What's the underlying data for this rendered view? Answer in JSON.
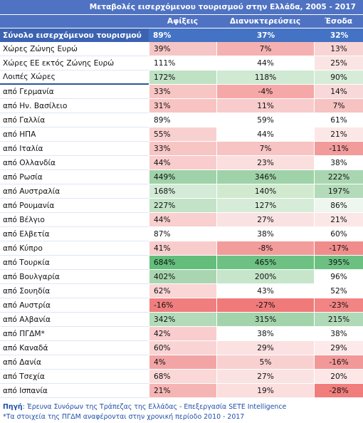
{
  "title": "Μεταβολές εισερχόμενου τουρισμού στην Ελλάδα, 2005 - 2017",
  "columns": [
    "Αφίξεις",
    "Διανυκτερεύσεις",
    "Έσοδα"
  ],
  "total": {
    "label": "Σύνολο εισερχόμενου τουρισμού",
    "values": [
      "89%",
      "37%",
      "32%"
    ]
  },
  "rows": [
    {
      "label": "Χώρες Ζώνης Ευρώ",
      "values": [
        "39%",
        "7%",
        "13%"
      ],
      "colors": [
        "#f6c6c6",
        "#f5b1b1",
        "#f8d4d4"
      ]
    },
    {
      "label": "Χώρες ΕΕ εκτός Ζώνης Ευρώ",
      "values": [
        "111%",
        "44%",
        "25%"
      ],
      "colors": [
        "#ffffff",
        "#ffffff",
        "#fbe4e4"
      ]
    },
    {
      "label": "Λοιπές Χώρες",
      "values": [
        "172%",
        "118%",
        "90%"
      ],
      "colors": [
        "#bfe2c5",
        "#cfe9d3",
        "#d6ecd9"
      ]
    },
    {
      "label": "από Γερμανία",
      "values": [
        "33%",
        "-4%",
        "14%"
      ],
      "colors": [
        "#f8c5c5",
        "#f6a7a7",
        "#f8d8d8"
      ]
    },
    {
      "label": "από Ην. Βασίλειο",
      "values": [
        "31%",
        "11%",
        "7%"
      ],
      "colors": [
        "#f8c3c3",
        "#f8cccc",
        "#f6c2c2"
      ]
    },
    {
      "label": "από Γαλλία",
      "values": [
        "89%",
        "59%",
        "61%"
      ],
      "colors": [
        "#ffffff",
        "#ffffff",
        "#ffffff"
      ]
    },
    {
      "label": "από ΗΠΑ",
      "values": [
        "55%",
        "44%",
        "21%"
      ],
      "colors": [
        "#f9d0d0",
        "#ffffff",
        "#fce7e7"
      ]
    },
    {
      "label": "από Ιταλία",
      "values": [
        "33%",
        "7%",
        "-11%"
      ],
      "colors": [
        "#f8c5c5",
        "#f7c3c3",
        "#f29b9b"
      ]
    },
    {
      "label": "από Ολλανδία",
      "values": [
        "44%",
        "23%",
        "38%"
      ],
      "colors": [
        "#f9cdcd",
        "#fbdede",
        "#ffffff"
      ]
    },
    {
      "label": "από Ρωσία",
      "values": [
        "449%",
        "346%",
        "222%"
      ],
      "colors": [
        "#9fd2a8",
        "#9fd2a8",
        "#a9d6b1"
      ]
    },
    {
      "label": "από Αυστραλία",
      "values": [
        "168%",
        "140%",
        "197%"
      ],
      "colors": [
        "#d3ebd7",
        "#d1eacf",
        "#b3dbb9"
      ]
    },
    {
      "label": "από Ρουμανία",
      "values": [
        "227%",
        "127%",
        "86%"
      ],
      "colors": [
        "#c2e3c7",
        "#d6ecd9",
        "#eef7ef"
      ]
    },
    {
      "label": "από Βέλγιο",
      "values": [
        "44%",
        "27%",
        "21%"
      ],
      "colors": [
        "#f9cfcf",
        "#fbe2e2",
        "#fce7e7"
      ]
    },
    {
      "label": "από Ελβετία",
      "values": [
        "87%",
        "38%",
        "60%"
      ],
      "colors": [
        "#ffffff",
        "#ffffff",
        "#ffffff"
      ]
    },
    {
      "label": "από Κύπρο",
      "values": [
        "41%",
        "-8%",
        "-17%"
      ],
      "colors": [
        "#f9cccc",
        "#f39c9c",
        "#f08c8c"
      ]
    },
    {
      "label": "από Τουρκία",
      "values": [
        "684%",
        "465%",
        "395%"
      ],
      "colors": [
        "#63be7b",
        "#6dc283",
        "#6cc182"
      ]
    },
    {
      "label": "από Βουλγαρία",
      "values": [
        "402%",
        "200%",
        "96%"
      ],
      "colors": [
        "#a9d6b1",
        "#c6e5cb",
        "#ffffff"
      ]
    },
    {
      "label": "από Σουηδία",
      "values": [
        "62%",
        "43%",
        "52%"
      ],
      "colors": [
        "#fad6d6",
        "#ffffff",
        "#ffffff"
      ]
    },
    {
      "label": "από Αυστρία",
      "values": [
        "-16%",
        "-27%",
        "-23%"
      ],
      "colors": [
        "#f07e7e",
        "#f07a7a",
        "#f28484"
      ]
    },
    {
      "label": "από Αλβανία",
      "values": [
        "342%",
        "315%",
        "215%"
      ],
      "colors": [
        "#b3dbb9",
        "#a3d3ab",
        "#b0d9b7"
      ]
    },
    {
      "label": "από ΠΓΔΜ*",
      "values": [
        "42%",
        "38%",
        "38%"
      ],
      "colors": [
        "#f9cdcd",
        "#ffffff",
        "#ffffff"
      ]
    },
    {
      "label": "από Καναδά",
      "values": [
        "60%",
        "29%",
        "29%"
      ],
      "colors": [
        "#fad4d4",
        "#fbe1e1",
        "#fde9e9"
      ]
    },
    {
      "label": "από Δανία",
      "values": [
        "4%",
        "5%",
        "-16%"
      ],
      "colors": [
        "#f3a5a5",
        "#f9d0d0",
        "#f29898"
      ]
    },
    {
      "label": "από Τσεχία",
      "values": [
        "68%",
        "27%",
        "20%"
      ],
      "colors": [
        "#fad8d8",
        "#fbe2e2",
        "#fce6e6"
      ]
    },
    {
      "label": "από Ισπανία",
      "values": [
        "21%",
        "19%",
        "-28%"
      ],
      "colors": [
        "#f6b5b5",
        "#fbdede",
        "#f17d7d"
      ]
    }
  ],
  "source_label": "Πηγή",
  "source_text": ": Έρευνα Συνόρων της Τράπεζας της Ελλάδας - Επεξεργασία SETE Intelligence",
  "note": "*Τα στοιχεία της ΠΓΔΜ αναφέρονται στην χρονική περίοδο 2010 - 2017"
}
